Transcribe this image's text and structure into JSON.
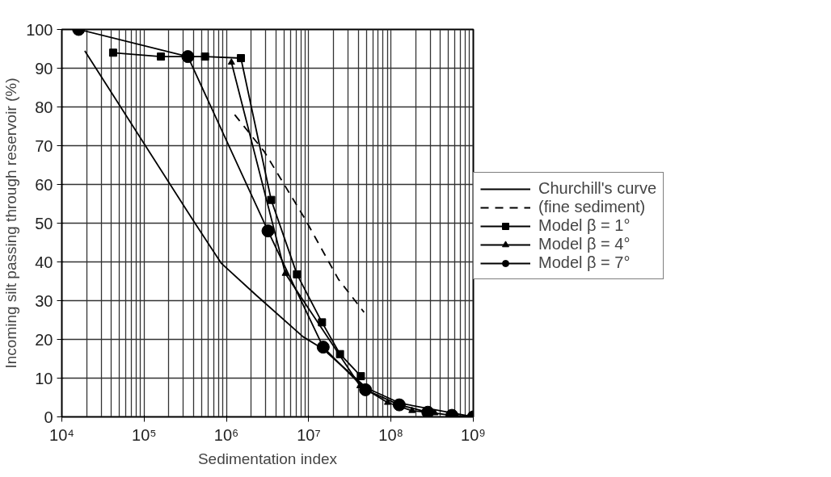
{
  "chart_data": {
    "type": "line",
    "xlabel": "Sedimentation index",
    "ylabel": "Incoming silt passing through reservoir (%)",
    "log": "x",
    "grid": true,
    "legend": "right",
    "xlim": [
      10000,
      1000000000
    ],
    "ylim": [
      0,
      100
    ],
    "xticks": [
      {
        "value": 10000,
        "label": "10⁴"
      },
      {
        "value": 100000,
        "label": "10⁵"
      },
      {
        "value": 1000000,
        "label": "10⁶"
      },
      {
        "value": 10000000,
        "label": "10⁷"
      },
      {
        "value": 100000000,
        "label": "10⁸"
      },
      {
        "value": 1000000000,
        "label": "10⁹"
      }
    ],
    "yticks": [
      0,
      10,
      20,
      30,
      40,
      50,
      60,
      70,
      80,
      90,
      100
    ],
    "series": [
      {
        "name": "Churchill's curve",
        "color": "#000000",
        "line_style": "solid",
        "marker": "none",
        "x": [
          19000,
          400000,
          870000,
          2300000,
          8500000,
          15000000,
          50000000,
          130000000,
          1000000000
        ],
        "values": [
          94.5,
          50.5,
          39.6,
          31.4,
          20.7,
          17.5,
          7.5,
          3.5,
          0
        ]
      },
      {
        "name": "(fine sediment)",
        "color": "#000000",
        "line_style": "dashed",
        "marker": "none",
        "x": [
          1260000,
          2900000,
          8900000,
          23000000,
          47000000
        ],
        "values": [
          78,
          68.4,
          51.3,
          35.5,
          27
        ]
      },
      {
        "name": "Model β = 1°",
        "color": "#000000",
        "line_style": "solid",
        "marker": "square",
        "x": [
          42000,
          160000,
          550000,
          1500000,
          3500000,
          7200000,
          14500000,
          24000000,
          43000000
        ],
        "values": [
          94,
          93,
          93,
          92.6,
          56,
          36.8,
          24.4,
          16.2,
          10.5
        ]
      },
      {
        "name": "Model β = 4°",
        "color": "#000000",
        "line_style": "solid",
        "marker": "triangle",
        "x": [
          1150000,
          5200000,
          42000000,
          91000000,
          180000000,
          340000000
        ],
        "values": [
          91.5,
          37,
          8,
          3.7,
          1.6,
          1
        ]
      },
      {
        "name": "Model β = 7°",
        "color": "#000000",
        "line_style": "solid",
        "marker": "circle",
        "x": [
          16000,
          340000,
          3200000,
          15000000,
          49000000,
          126000000,
          280000000,
          550000000,
          1000000000
        ],
        "values": [
          100,
          93,
          48,
          18,
          7,
          3.1,
          1.2,
          0.4,
          0
        ]
      }
    ]
  }
}
